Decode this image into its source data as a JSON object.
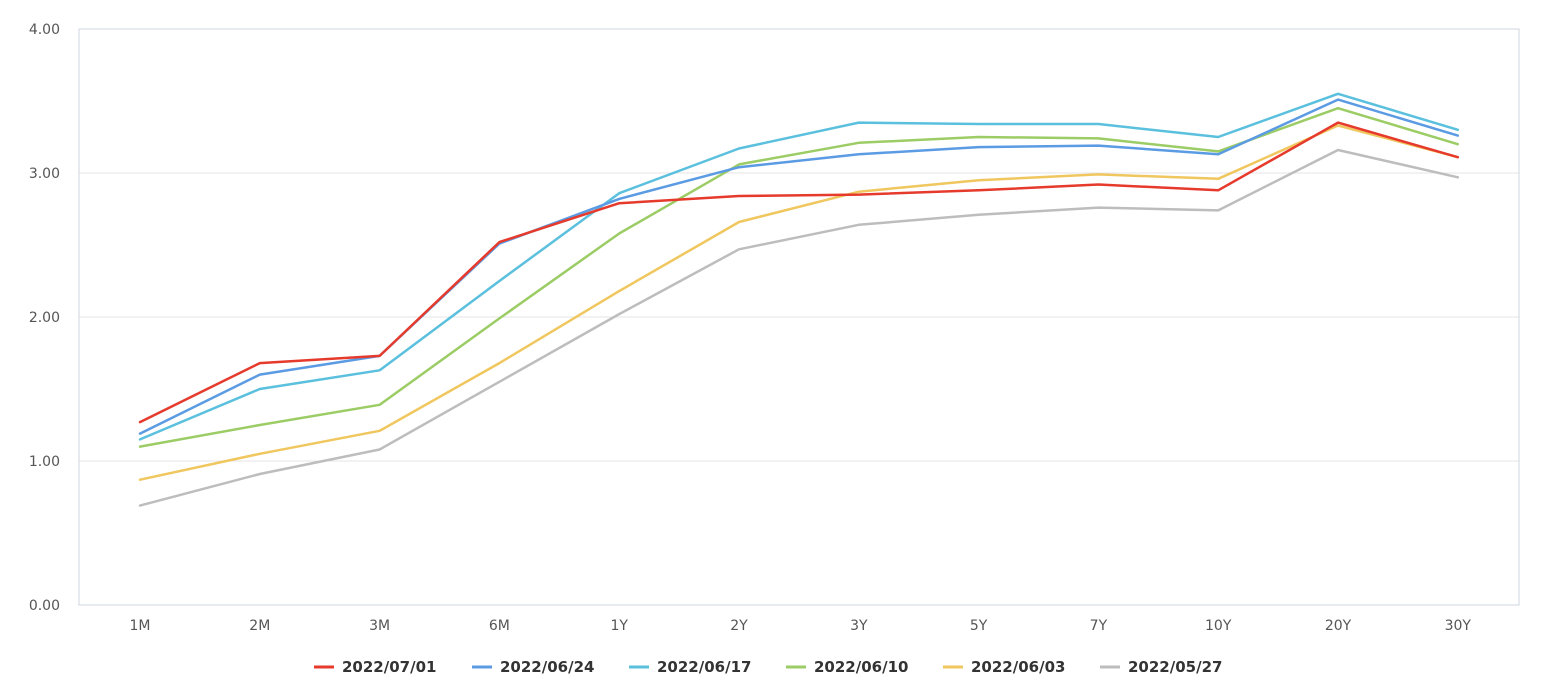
{
  "chart_data": {
    "type": "line",
    "title": "",
    "xlabel": "",
    "ylabel": "",
    "categories": [
      "1M",
      "2M",
      "3M",
      "6M",
      "1Y",
      "2Y",
      "3Y",
      "5Y",
      "7Y",
      "10Y",
      "20Y",
      "30Y"
    ],
    "ylim": [
      0,
      4
    ],
    "yticks": [
      "0.00",
      "1.00",
      "2.00",
      "3.00",
      "4.00"
    ],
    "grid": true,
    "legend_position": "bottom",
    "series": [
      {
        "name": "2022/07/01",
        "color": "#e53a2c",
        "values": [
          1.27,
          1.68,
          1.73,
          2.52,
          2.79,
          2.84,
          2.85,
          2.88,
          2.92,
          2.88,
          3.35,
          3.11
        ]
      },
      {
        "name": "2022/06/24",
        "color": "#5b9be3",
        "values": [
          1.19,
          1.6,
          1.73,
          2.51,
          2.82,
          3.04,
          3.13,
          3.18,
          3.19,
          3.13,
          3.51,
          3.26
        ]
      },
      {
        "name": "2022/06/17",
        "color": "#5bc0de",
        "values": [
          1.15,
          1.5,
          1.63,
          2.25,
          2.86,
          3.17,
          3.35,
          3.34,
          3.34,
          3.25,
          3.55,
          3.3
        ]
      },
      {
        "name": "2022/06/10",
        "color": "#9ccc65",
        "values": [
          1.1,
          1.25,
          1.39,
          1.99,
          2.58,
          3.06,
          3.21,
          3.25,
          3.24,
          3.15,
          3.45,
          3.2
        ]
      },
      {
        "name": "2022/06/03",
        "color": "#f0c75e",
        "values": [
          0.87,
          1.05,
          1.21,
          1.68,
          2.18,
          2.66,
          2.87,
          2.95,
          2.99,
          2.96,
          3.33,
          3.11
        ]
      },
      {
        "name": "2022/05/27",
        "color": "#bdbdbd",
        "values": [
          0.69,
          0.91,
          1.08,
          1.55,
          2.02,
          2.47,
          2.64,
          2.71,
          2.76,
          2.74,
          3.16,
          2.97
        ]
      }
    ]
  }
}
